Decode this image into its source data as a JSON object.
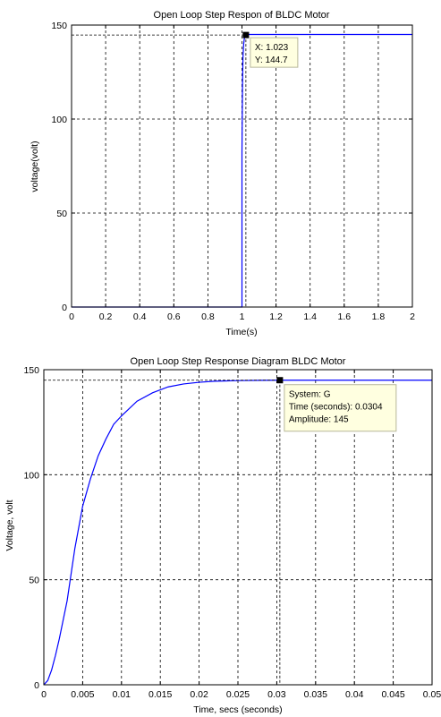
{
  "chart_data": [
    {
      "type": "line",
      "title": "Open Loop Step Respon of BLDC Motor",
      "xlabel": "Time(s)",
      "ylabel": "voltage(volt)",
      "xlim": [
        0,
        2
      ],
      "ylim": [
        0,
        150
      ],
      "grid": true,
      "xticks": [
        0,
        0.2,
        0.4,
        0.6,
        0.8,
        1,
        1.2,
        1.4,
        1.6,
        1.8,
        2
      ],
      "yticks": [
        0,
        50,
        100,
        150
      ],
      "xtick_labels": [
        "0",
        "0.2",
        "0.4",
        "0.6",
        "0.8",
        "1",
        "1.2",
        "1.4",
        "1.6",
        "1.8",
        "2"
      ],
      "ytick_labels": [
        "0",
        "50",
        "100",
        "150"
      ],
      "series": [
        {
          "color": "#0000ff",
          "x": [
            0,
            1.0,
            1.0,
            1.003,
            1.006,
            1.01,
            1.015,
            1.02,
            1.023,
            1.04,
            1.1,
            1.5,
            2.0
          ],
          "y": [
            0,
            0,
            82,
            118,
            133,
            140,
            143.5,
            144.5,
            144.7,
            145,
            145,
            145,
            145
          ]
        }
      ],
      "datatip": {
        "x": 1.023,
        "y": 144.7,
        "lines": [
          "X: 1.023",
          "Y: 144.7"
        ]
      }
    },
    {
      "type": "line",
      "title": "Open Loop Step Response Diagram BLDC Motor",
      "xlabel": "Time, secs (seconds)",
      "ylabel": "Voltage, volt",
      "xlim": [
        0,
        0.05
      ],
      "ylim": [
        0,
        150
      ],
      "grid": true,
      "xticks": [
        0,
        0.005,
        0.01,
        0.015,
        0.02,
        0.025,
        0.03,
        0.035,
        0.04,
        0.045,
        0.05
      ],
      "yticks": [
        0,
        50,
        100,
        150
      ],
      "xtick_labels": [
        "0",
        "0.005",
        "0.01",
        "0.015",
        "0.02",
        "0.025",
        "0.03",
        "0.035",
        "0.04",
        "0.045",
        "0.05"
      ],
      "ytick_labels": [
        "0",
        "50",
        "100",
        "150"
      ],
      "series": [
        {
          "color": "#0000ff",
          "x": [
            0,
            0.0005,
            0.001,
            0.0015,
            0.002,
            0.003,
            0.004,
            0.005,
            0.006,
            0.007,
            0.008,
            0.009,
            0.01,
            0.012,
            0.014,
            0.016,
            0.018,
            0.02,
            0.022,
            0.025,
            0.028,
            0.0304,
            0.035,
            0.04,
            0.045,
            0.05
          ],
          "y": [
            0,
            2,
            7,
            14,
            22,
            40,
            65,
            85,
            98,
            109,
            117,
            124,
            128,
            135,
            139,
            141.8,
            143.2,
            144,
            144.5,
            144.8,
            144.95,
            145,
            145,
            145,
            145,
            145
          ]
        }
      ],
      "datatip": {
        "x": 0.0304,
        "y": 145,
        "lines": [
          "System: G",
          "Time (seconds): 0.0304",
          "Amplitude: 145"
        ]
      }
    }
  ]
}
